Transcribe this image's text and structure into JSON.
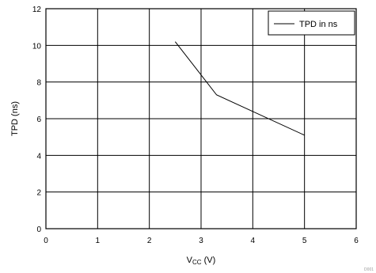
{
  "chart_data": {
    "type": "line",
    "title": "",
    "xlabel": {
      "main": "V",
      "sub": "CC",
      "rest": " (V)"
    },
    "ylabel": "TPD (ns)",
    "xlim": [
      0,
      6
    ],
    "ylim": [
      0,
      12
    ],
    "x_ticks": [
      0,
      1,
      2,
      3,
      4,
      5,
      6
    ],
    "y_ticks": [
      0,
      2,
      4,
      6,
      8,
      10,
      12
    ],
    "grid": true,
    "legend_position": "top-right",
    "series": [
      {
        "name": "TPD in ns",
        "color": "#000000",
        "x": [
          2.5,
          3.3,
          5.0
        ],
        "y": [
          10.2,
          7.3,
          5.1
        ]
      }
    ]
  },
  "figure_code": "D001"
}
